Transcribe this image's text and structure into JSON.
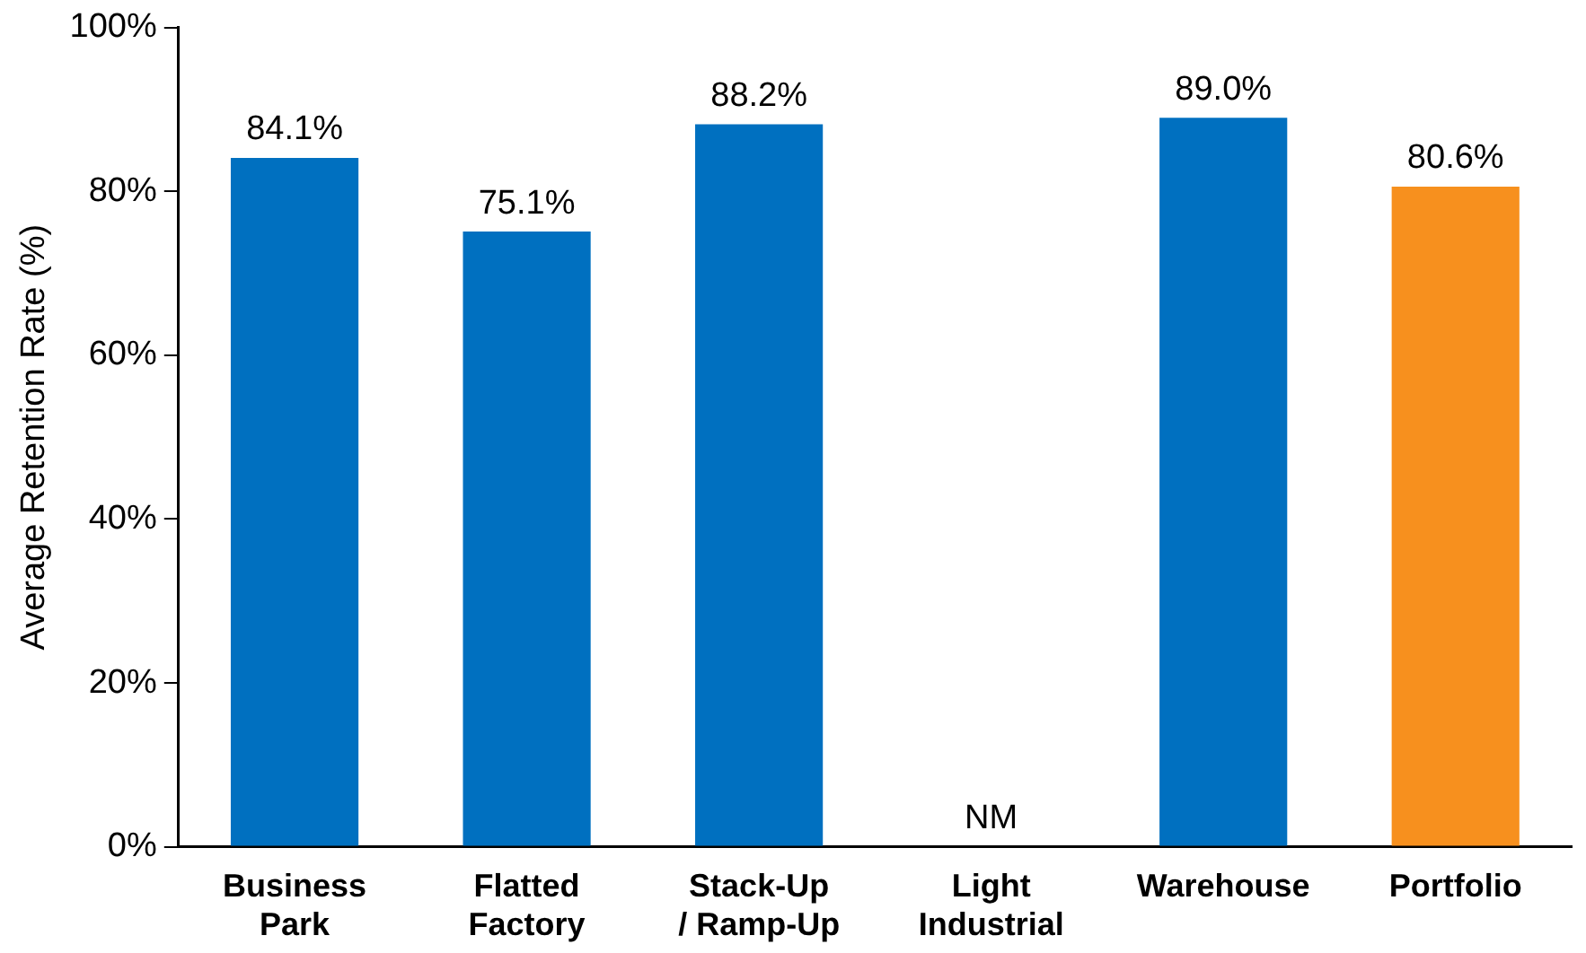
{
  "chart_data": {
    "type": "bar",
    "ylabel": "Average Retention Rate (%)",
    "categories": [
      "Business Park",
      "Flatted Factory",
      "Stack-Up / Ramp-Up",
      "Light Industrial",
      "Warehouse",
      "Portfolio"
    ],
    "values": [
      84.1,
      75.1,
      88.2,
      null,
      89.0,
      80.6
    ],
    "colors": [
      "#0070c0",
      "#0070c0",
      "#0070c0",
      "#0070c0",
      "#0070c0",
      "#f7901e"
    ],
    "value_labels": [
      "84.1%",
      "75.1%",
      "88.2%",
      "NM",
      "89.0%",
      "80.6%"
    ],
    "ylim": [
      0,
      100
    ],
    "yticks": [
      {
        "value": 0,
        "label": "0%"
      },
      {
        "value": 20,
        "label": "20%"
      },
      {
        "value": 40,
        "label": "40%"
      },
      {
        "value": 60,
        "label": "60%"
      },
      {
        "value": 80,
        "label": "80%"
      },
      {
        "value": 100,
        "label": "100%"
      }
    ],
    "grid": false,
    "legend": false
  }
}
